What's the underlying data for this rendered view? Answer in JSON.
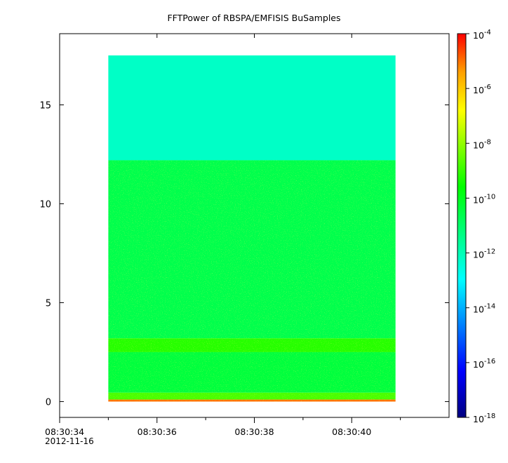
{
  "chart_data": {
    "type": "heatmap",
    "title": "FFTPower of RBSPA/EMFISIS  BuSamples",
    "xlabel": "",
    "ylabel": "",
    "x": {
      "scale": "time",
      "range": [
        "08:30:34",
        "08:30:42"
      ],
      "tick_labels": [
        "08:30:34",
        "08:30:36",
        "08:30:38",
        "08:30:40"
      ],
      "tick_values_s": [
        0,
        2,
        4,
        6
      ],
      "minor_tick_values_s": [
        1,
        3,
        5,
        7
      ],
      "date_label": "2012-11-16",
      "data_extent_s": [
        1.0,
        6.9
      ]
    },
    "y": {
      "range": [
        -0.8,
        18.6
      ],
      "ticks": [
        0,
        5,
        10,
        15
      ],
      "data_extent": [
        0,
        17.5
      ]
    },
    "colorbar": {
      "scale": "log",
      "range": [
        1e-18,
        0.0001
      ],
      "tick_exponents": [
        -4,
        -6,
        -8,
        -10,
        -12,
        -14,
        -16,
        -18
      ],
      "colormap": "rainbow",
      "colors": [
        "#000080",
        "#0000ff",
        "#0080ff",
        "#00ffff",
        "#00ff80",
        "#00ff00",
        "#80ff00",
        "#ffff00",
        "#ffa000",
        "#ff0000"
      ]
    },
    "bands": [
      {
        "y_range": [
          12.2,
          17.5
        ],
        "log10_power": -12.2
      },
      {
        "y_range": [
          3.2,
          12.2
        ],
        "log10_power": -10.6
      },
      {
        "y_range": [
          2.5,
          3.2
        ],
        "log10_power": -9.2
      },
      {
        "y_range": [
          0.45,
          2.5
        ],
        "log10_power": -10.4
      },
      {
        "y_range": [
          0.1,
          0.45
        ],
        "log10_power": -8.8
      },
      {
        "y_range": [
          0,
          0.1
        ],
        "log10_power": -5.0
      }
    ]
  }
}
